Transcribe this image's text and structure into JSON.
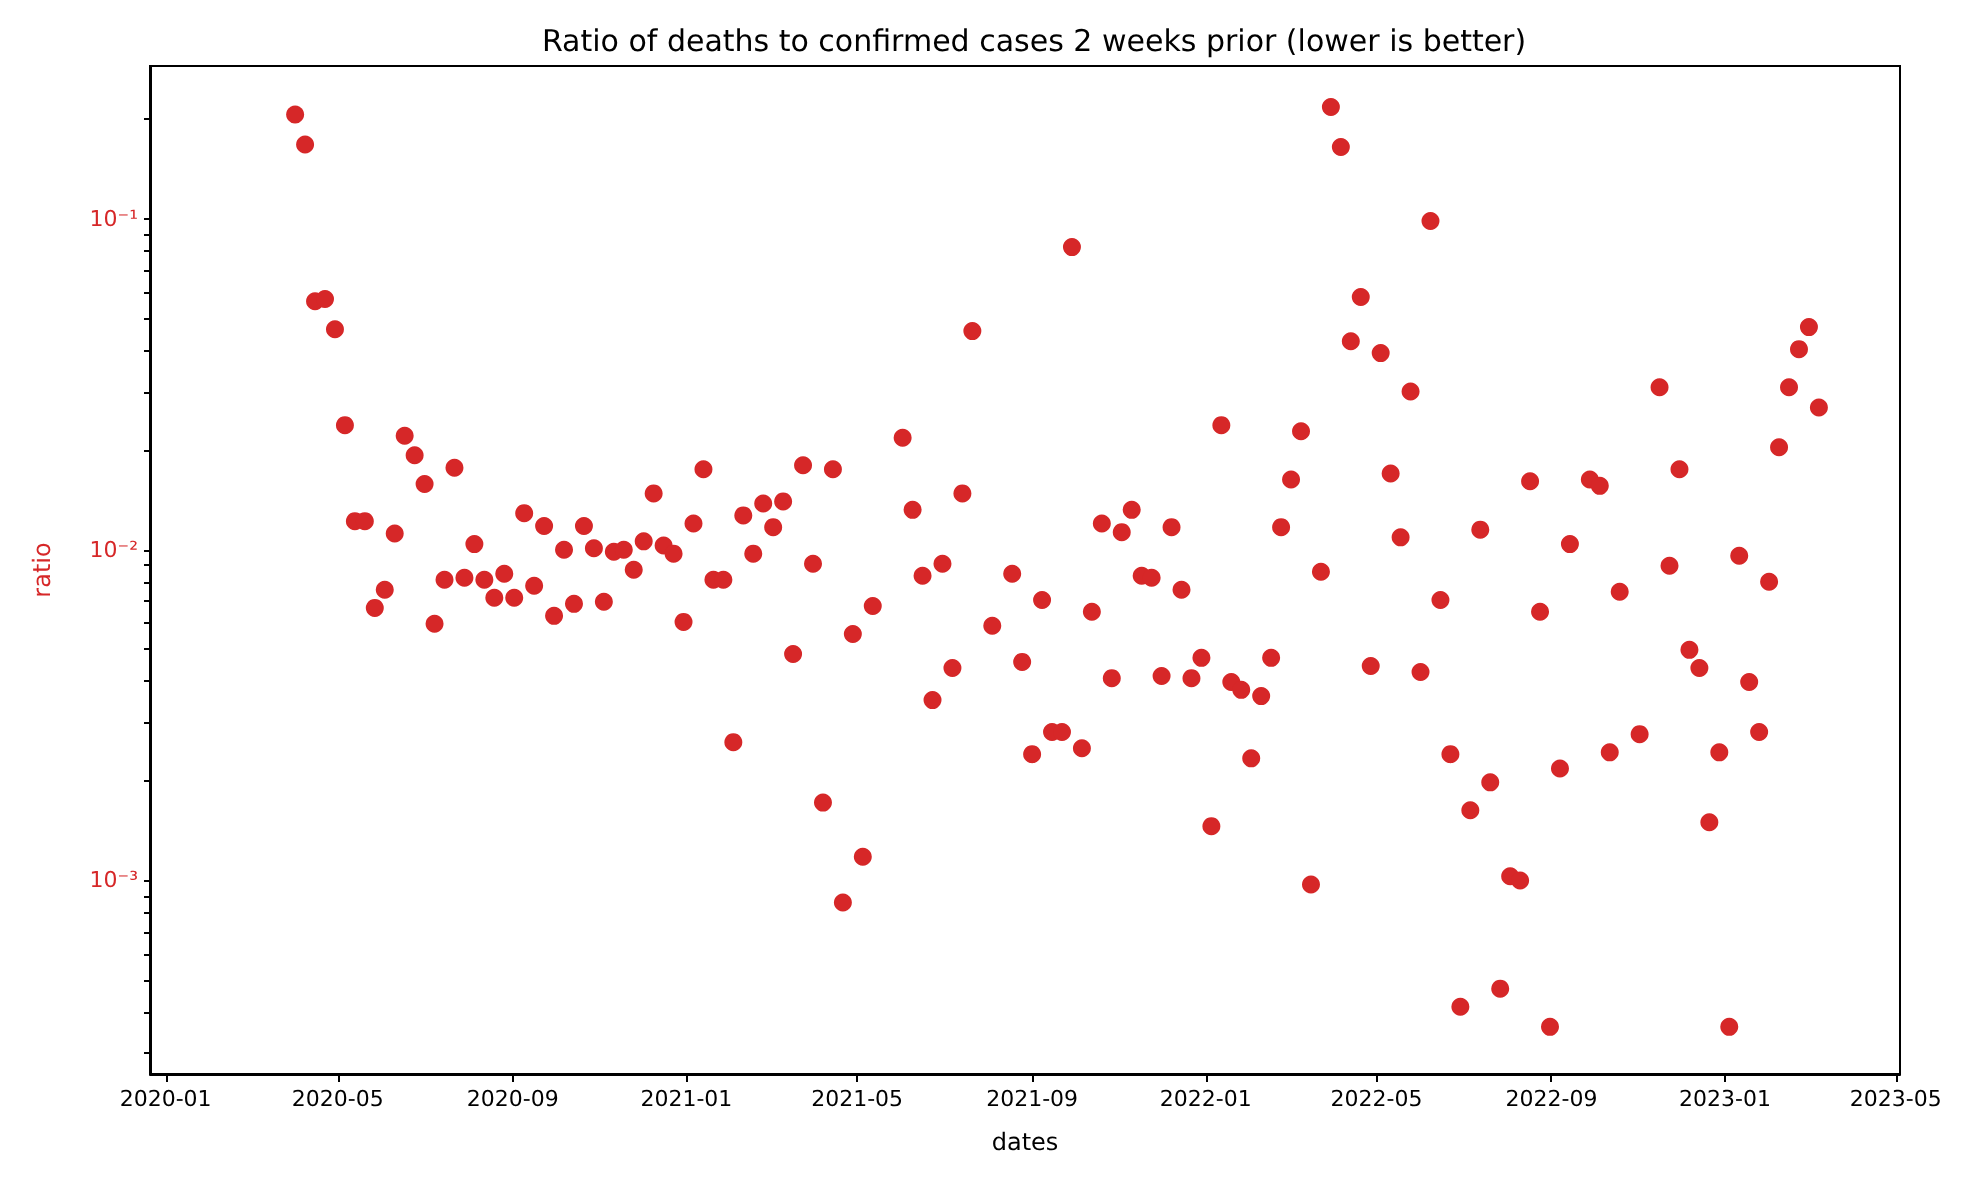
{
  "chart_data": {
    "type": "scatter",
    "title": "Ratio of deaths to confirmed cases 2 weeks prior (lower is better)",
    "xlabel": "dates",
    "ylabel": "ratio",
    "log": "y",
    "marker": "circle",
    "xlim": [
      "2019-12-21",
      "2023-05-04"
    ],
    "xticks": [
      "2020-01",
      "2020-05",
      "2020-09",
      "2021-01",
      "2021-05",
      "2021-09",
      "2022-01",
      "2022-05",
      "2022-09",
      "2023-01",
      "2023-05"
    ],
    "ylim": [
      0.00026,
      0.29
    ],
    "yticks": [
      {
        "value": 0.0003,
        "label": null
      },
      {
        "value": 0.0004,
        "label": null
      },
      {
        "value": 0.0005,
        "label": null
      },
      {
        "value": 0.0006,
        "label": null
      },
      {
        "value": 0.0007,
        "label": null
      },
      {
        "value": 0.0008,
        "label": null
      },
      {
        "value": 0.0009,
        "label": null
      },
      {
        "value": 0.001,
        "label": "10⁻³"
      },
      {
        "value": 0.002,
        "label": null
      },
      {
        "value": 0.003,
        "label": null
      },
      {
        "value": 0.004,
        "label": null
      },
      {
        "value": 0.005,
        "label": null
      },
      {
        "value": 0.006,
        "label": null
      },
      {
        "value": 0.007,
        "label": null
      },
      {
        "value": 0.008,
        "label": null
      },
      {
        "value": 0.009,
        "label": null
      },
      {
        "value": 0.01,
        "label": "10⁻²"
      },
      {
        "value": 0.02,
        "label": null
      },
      {
        "value": 0.03,
        "label": null
      },
      {
        "value": 0.04,
        "label": null
      },
      {
        "value": 0.05,
        "label": null
      },
      {
        "value": 0.06,
        "label": null
      },
      {
        "value": 0.07,
        "label": null
      },
      {
        "value": 0.08,
        "label": null
      },
      {
        "value": 0.09,
        "label": null
      },
      {
        "value": 0.1,
        "label": "10⁻¹"
      },
      {
        "value": 0.2,
        "label": null
      }
    ],
    "series": [
      {
        "color": "#d62728",
        "x": [
          "2020-04-01",
          "2020-04-08",
          "2020-04-15",
          "2020-04-22",
          "2020-04-29",
          "2020-05-06",
          "2020-05-13",
          "2020-05-20",
          "2020-05-27",
          "2020-06-03",
          "2020-06-10",
          "2020-06-17",
          "2020-06-24",
          "2020-07-01",
          "2020-07-08",
          "2020-07-15",
          "2020-07-22",
          "2020-07-29",
          "2020-08-05",
          "2020-08-12",
          "2020-08-19",
          "2020-08-26",
          "2020-09-02",
          "2020-09-09",
          "2020-09-16",
          "2020-09-23",
          "2020-09-30",
          "2020-10-07",
          "2020-10-14",
          "2020-10-21",
          "2020-10-28",
          "2020-11-04",
          "2020-11-11",
          "2020-11-18",
          "2020-11-25",
          "2020-12-02",
          "2020-12-09",
          "2020-12-16",
          "2020-12-23",
          "2020-12-30",
          "2021-01-06",
          "2021-01-13",
          "2021-01-20",
          "2021-01-27",
          "2021-02-03",
          "2021-02-10",
          "2021-02-17",
          "2021-02-24",
          "2021-03-03",
          "2021-03-10",
          "2021-03-17",
          "2021-03-24",
          "2021-03-31",
          "2021-04-07",
          "2021-04-14",
          "2021-04-21",
          "2021-04-28",
          "2021-05-05",
          "2021-05-12",
          "2021-06-02",
          "2021-06-09",
          "2021-06-16",
          "2021-06-23",
          "2021-06-30",
          "2021-07-07",
          "2021-07-14",
          "2021-07-21",
          "2021-08-04",
          "2021-08-18",
          "2021-08-25",
          "2021-09-01",
          "2021-09-08",
          "2021-09-15",
          "2021-09-22",
          "2021-09-29",
          "2021-10-06",
          "2021-10-13",
          "2021-10-20",
          "2021-10-27",
          "2021-11-03",
          "2021-11-10",
          "2021-11-17",
          "2021-11-24",
          "2021-12-01",
          "2021-12-08",
          "2021-12-15",
          "2021-12-22",
          "2021-12-29",
          "2022-01-05",
          "2022-01-12",
          "2022-01-19",
          "2022-01-26",
          "2022-02-02",
          "2022-02-09",
          "2022-02-16",
          "2022-02-23",
          "2022-03-02",
          "2022-03-09",
          "2022-03-16",
          "2022-03-23",
          "2022-03-30",
          "2022-04-06",
          "2022-04-13",
          "2022-04-20",
          "2022-04-27",
          "2022-05-04",
          "2022-05-11",
          "2022-05-18",
          "2022-05-25",
          "2022-06-01",
          "2022-06-08",
          "2022-06-15",
          "2022-06-22",
          "2022-06-29",
          "2022-07-06",
          "2022-07-13",
          "2022-07-20",
          "2022-07-27",
          "2022-08-03",
          "2022-08-10",
          "2022-08-17",
          "2022-08-24",
          "2022-08-31",
          "2022-09-07",
          "2022-09-14",
          "2022-09-28",
          "2022-10-05",
          "2022-10-12",
          "2022-10-19",
          "2022-11-02",
          "2022-11-16",
          "2022-11-23",
          "2022-11-30",
          "2022-12-07",
          "2022-12-14",
          "2022-12-21",
          "2022-12-28",
          "2023-01-04",
          "2023-01-11",
          "2023-01-18",
          "2023-01-25",
          "2023-02-01",
          "2023-02-08",
          "2023-02-15",
          "2023-02-22",
          "2023-03-01",
          "2023-03-08"
        ],
        "values": [
          0.207,
          0.168,
          0.0564,
          0.0573,
          0.0464,
          0.0238,
          0.0122,
          0.0122,
          0.00667,
          0.00757,
          0.0112,
          0.0221,
          0.0193,
          0.0158,
          0.00597,
          0.00811,
          0.0177,
          0.00823,
          0.0104,
          0.00811,
          0.00716,
          0.00846,
          0.00716,
          0.0129,
          0.00778,
          0.0118,
          0.00631,
          0.01,
          0.00686,
          0.0118,
          0.0101,
          0.00696,
          0.00986,
          0.01,
          0.0087,
          0.0106,
          0.0148,
          0.0103,
          0.00973,
          0.00605,
          0.012,
          0.0175,
          0.00811,
          0.00811,
          0.00262,
          0.0127,
          0.00973,
          0.0138,
          0.0117,
          0.014,
          0.00484,
          0.018,
          0.00907,
          0.00172,
          0.0175,
          0.000858,
          0.00556,
          0.00118,
          0.00676,
          0.0218,
          0.0132,
          0.00834,
          0.00351,
          0.00907,
          0.00439,
          0.0148,
          0.0458,
          0.00589,
          0.00846,
          0.00458,
          0.00241,
          0.00705,
          0.00281,
          0.00281,
          0.0822,
          0.00251,
          0.00649,
          0.012,
          0.00409,
          0.0113,
          0.0132,
          0.00834,
          0.00823,
          0.00415,
          0.0117,
          0.00757,
          0.00409,
          0.00471,
          0.00146,
          0.0238,
          0.00398,
          0.00377,
          0.00234,
          0.00361,
          0.00471,
          0.0117,
          0.0163,
          0.0228,
          0.000972,
          0.00858,
          0.218,
          0.165,
          0.0427,
          0.0581,
          0.00445,
          0.0393,
          0.017,
          0.0109,
          0.0301,
          0.00427,
          0.0986,
          0.00705,
          0.00241,
          0.000415,
          0.00163,
          0.0115,
          0.00198,
          0.000471,
          0.00103,
          0.001,
          0.0161,
          0.00649,
          0.000361,
          0.00218,
          0.0104,
          0.0163,
          0.0156,
          0.00244,
          0.00746,
          0.00277,
          0.031,
          0.00894,
          0.0175,
          0.00498,
          0.00439,
          0.0015,
          0.00244,
          0.000361,
          0.00959,
          0.00398,
          0.00281,
          0.008,
          0.0204,
          0.031,
          0.0404,
          0.0471,
          0.0269
        ]
      }
    ]
  }
}
